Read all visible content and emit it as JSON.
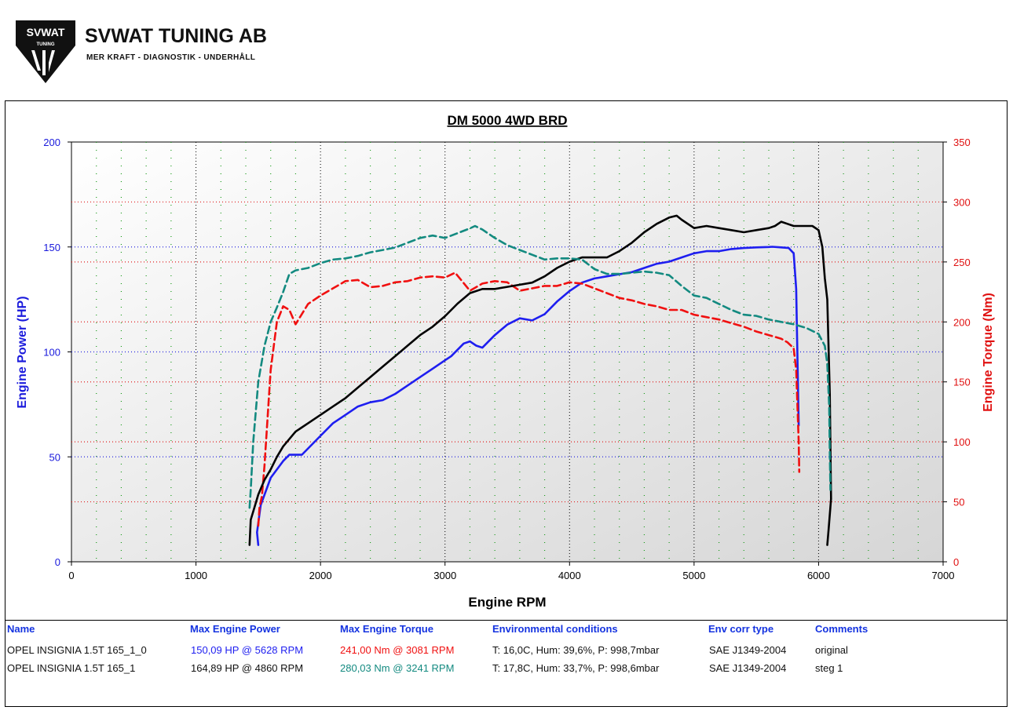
{
  "logo": {
    "badge": "SVWAT",
    "badge_sub": "TUNING",
    "name": "SVWAT TUNING AB",
    "tagline": "MER KRAFT - DIAGNOSTIK - UNDERHÅLL"
  },
  "colors": {
    "power_axis": "#1a1adc",
    "torque_axis": "#e01010",
    "run0_power": "#1e1ef0",
    "run0_torque": "#f01010",
    "run1_power": "#000000",
    "run1_torque": "#138a80"
  },
  "chart_data": {
    "type": "line",
    "title": "DM 5000 4WD BRD",
    "xlabel": "Engine RPM",
    "ylabel": "Engine Power (HP)",
    "y2label": "Engine Torque (Nm)",
    "xlim": [
      0,
      7000
    ],
    "ylim": [
      0,
      200
    ],
    "y2lim": [
      0,
      350
    ],
    "xticks": [
      "0",
      "1000",
      "2000",
      "3000",
      "4000",
      "5000",
      "6000",
      "7000"
    ],
    "yticks": [
      "0",
      "50",
      "100",
      "150",
      "200"
    ],
    "y2ticks": [
      "0",
      "50",
      "100",
      "150",
      "200",
      "250",
      "300",
      "350"
    ],
    "grid": true,
    "series": [
      {
        "run": 0,
        "axis": "left",
        "style": "solid",
        "color": "#1e1ef0",
        "x": [
          1500,
          1490,
          1520,
          1600,
          1700,
          1750,
          1800,
          1850,
          2000,
          2100,
          2200,
          2300,
          2400,
          2500,
          2600,
          2700,
          2800,
          2900,
          3000,
          3050,
          3100,
          3150,
          3200,
          3250,
          3300,
          3400,
          3500,
          3600,
          3700,
          3800,
          3900,
          4000,
          4100,
          4200,
          4300,
          4400,
          4500,
          4600,
          4700,
          4800,
          4900,
          5000,
          5100,
          5200,
          5300,
          5400,
          5500,
          5600,
          5628,
          5700,
          5760,
          5800,
          5820,
          5840
        ],
        "y": [
          8,
          14,
          27,
          40,
          48,
          51,
          51,
          51,
          60,
          66,
          70,
          74,
          76,
          77,
          80,
          84,
          88,
          92,
          96,
          98,
          101,
          104,
          105,
          103,
          102,
          108,
          113,
          116,
          115,
          118,
          124,
          129,
          133,
          135,
          136,
          137,
          138,
          140,
          142,
          143,
          145,
          147,
          148,
          148,
          149,
          149.5,
          149.8,
          150,
          150.09,
          149.8,
          149.5,
          147,
          130,
          65
        ]
      },
      {
        "run": 0,
        "axis": "right",
        "style": "dashed",
        "color": "#f01010",
        "x": [
          1500,
          1510,
          1530,
          1550,
          1600,
          1650,
          1700,
          1750,
          1800,
          1900,
          2000,
          2100,
          2200,
          2300,
          2400,
          2500,
          2600,
          2700,
          2800,
          2900,
          3000,
          3081,
          3200,
          3300,
          3400,
          3500,
          3600,
          3700,
          3800,
          3900,
          4000,
          4100,
          4200,
          4300,
          4400,
          4500,
          4600,
          4700,
          4800,
          4900,
          5000,
          5100,
          5200,
          5300,
          5400,
          5500,
          5600,
          5700,
          5750,
          5800,
          5820,
          5840,
          5845
        ],
        "y": [
          30,
          45,
          55,
          80,
          160,
          200,
          213,
          210,
          198,
          215,
          222,
          228,
          234,
          235,
          229,
          230,
          233,
          234,
          237,
          238,
          237,
          241,
          226,
          232,
          234,
          233,
          226,
          228,
          230,
          230,
          233,
          232,
          228,
          224,
          220,
          218,
          215,
          213,
          210,
          210,
          206,
          204,
          202,
          199,
          196,
          192,
          189,
          186,
          183,
          178,
          160,
          100,
          75
        ]
      },
      {
        "run": 1,
        "axis": "left",
        "style": "solid",
        "color": "#000000",
        "x": [
          1430,
          1440,
          1470,
          1500,
          1550,
          1600,
          1650,
          1700,
          1800,
          1900,
          2000,
          2100,
          2200,
          2300,
          2400,
          2500,
          2600,
          2700,
          2800,
          2900,
          3000,
          3100,
          3200,
          3300,
          3400,
          3500,
          3600,
          3700,
          3800,
          3900,
          4000,
          4100,
          4200,
          4300,
          4400,
          4500,
          4600,
          4700,
          4800,
          4860,
          4900,
          5000,
          5100,
          5200,
          5300,
          5400,
          5500,
          5600,
          5650,
          5700,
          5750,
          5800,
          5900,
          5950,
          6000,
          6030,
          6050,
          6070,
          6090,
          6100,
          6080,
          6070
        ],
        "y": [
          8,
          20,
          26,
          32,
          39,
          44,
          50,
          55,
          62,
          66,
          70,
          74,
          78,
          83,
          88,
          93,
          98,
          103,
          108,
          112,
          117,
          123,
          128,
          130,
          130,
          131,
          132,
          133,
          136,
          140,
          143,
          145,
          145,
          145,
          148,
          152,
          157,
          161,
          164,
          164.89,
          163,
          159,
          160,
          159,
          158,
          157,
          158,
          159,
          160,
          162,
          161,
          160,
          160,
          160,
          158,
          150,
          135,
          125,
          80,
          30,
          15,
          8
        ]
      },
      {
        "run": 1,
        "axis": "right",
        "style": "dashed",
        "color": "#138a80",
        "x": [
          1430,
          1440,
          1460,
          1500,
          1550,
          1600,
          1650,
          1700,
          1750,
          1800,
          1900,
          2000,
          2100,
          2200,
          2300,
          2400,
          2500,
          2600,
          2700,
          2800,
          2900,
          3000,
          3100,
          3200,
          3241,
          3300,
          3400,
          3500,
          3600,
          3700,
          3800,
          3900,
          4000,
          4100,
          4200,
          4300,
          4400,
          4500,
          4600,
          4700,
          4800,
          4900,
          5000,
          5100,
          5200,
          5300,
          5400,
          5500,
          5600,
          5700,
          5800,
          5900,
          6000,
          6050,
          6070,
          6085,
          6090,
          6095
        ],
        "y": [
          45,
          60,
          100,
          150,
          180,
          200,
          212,
          225,
          240,
          243,
          245,
          249,
          252,
          253,
          255,
          258,
          260,
          262,
          266,
          270,
          272,
          270,
          274,
          278,
          280.03,
          277,
          270,
          264,
          260,
          256,
          252,
          253,
          253,
          252,
          244,
          240,
          240,
          241,
          242,
          241,
          239,
          230,
          222,
          220,
          215,
          210,
          206,
          205,
          202,
          200,
          198,
          195,
          190,
          180,
          165,
          130,
          90,
          60
        ]
      }
    ]
  },
  "results": {
    "headers": [
      "Name",
      "Max Engine Power",
      "Max Engine Torque",
      "Environmental conditions",
      "Env corr type",
      "Comments"
    ],
    "rows": [
      {
        "name": "OPEL INSIGNIA 1.5T 165_1_0",
        "power": "150,09 HP @ 5628 RPM",
        "torque": "241,00 Nm @ 3081 RPM",
        "env": "T: 16,0C, Hum: 39,6%, P: 998,7mbar",
        "corr": "SAE J1349-2004",
        "comment": "original"
      },
      {
        "name": "OPEL INSIGNIA 1.5T 165_1",
        "power": "164,89 HP @ 4860 RPM",
        "torque": "280,03 Nm @ 3241 RPM",
        "env": "T: 17,8C, Hum: 33,7%, P: 998,6mbar",
        "corr": "SAE J1349-2004",
        "comment": "steg 1"
      }
    ]
  }
}
